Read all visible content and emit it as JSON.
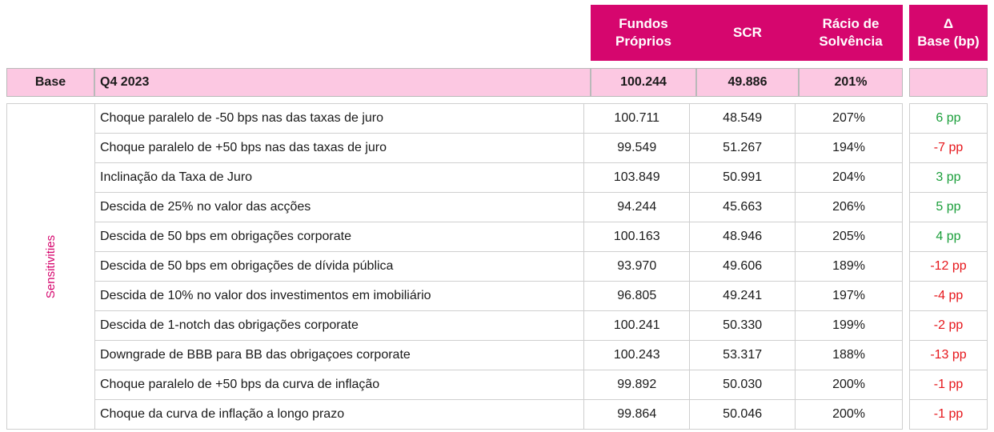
{
  "header": {
    "fundos_line1": "Fundos",
    "fundos_line2": "Próprios",
    "scr": "SCR",
    "racio_line1": "Rácio de",
    "racio_line2": "Solvência",
    "delta_line1": "Δ",
    "delta_line2": "Base (bp)"
  },
  "base": {
    "label": "Base",
    "period": "Q4 2023",
    "fundos": "100.244",
    "scr": "49.886",
    "racio": "201%",
    "delta": ""
  },
  "sensitivities_label": "Sensitivities",
  "rows": [
    {
      "label": "Choque paralelo de -50 bps nas das taxas de juro",
      "fundos": "100.711",
      "scr": "48.549",
      "racio": "207%",
      "delta": "6 pp",
      "sign": "pos"
    },
    {
      "label": "Choque paralelo de +50 bps nas das taxas de juro",
      "fundos": "99.549",
      "scr": "51.267",
      "racio": "194%",
      "delta": "-7 pp",
      "sign": "neg"
    },
    {
      "label": "Inclinação da Taxa de Juro",
      "fundos": "103.849",
      "scr": "50.991",
      "racio": "204%",
      "delta": "3 pp",
      "sign": "pos"
    },
    {
      "label": "Descida de 25% no valor das acções",
      "fundos": "94.244",
      "scr": "45.663",
      "racio": "206%",
      "delta": "5 pp",
      "sign": "pos"
    },
    {
      "label": "Descida de 50 bps em obrigações corporate",
      "fundos": "100.163",
      "scr": "48.946",
      "racio": "205%",
      "delta": "4 pp",
      "sign": "pos"
    },
    {
      "label": "Descida de 50 bps em obrigações de dívida pública",
      "fundos": "93.970",
      "scr": "49.606",
      "racio": "189%",
      "delta": "-12 pp",
      "sign": "neg"
    },
    {
      "label": "Descida de 10% no valor dos investimentos em imobiliário",
      "fundos": "96.805",
      "scr": "49.241",
      "racio": "197%",
      "delta": "-4 pp",
      "sign": "neg"
    },
    {
      "label": "Descida de 1-notch das obrigações corporate",
      "fundos": "100.241",
      "scr": "50.330",
      "racio": "199%",
      "delta": "-2 pp",
      "sign": "neg"
    },
    {
      "label": "Downgrade de BBB para BB das obrigaçoes corporate",
      "fundos": "100.243",
      "scr": "53.317",
      "racio": "188%",
      "delta": "-13 pp",
      "sign": "neg"
    },
    {
      "label": "Choque paralelo de +50 bps da curva de inflação",
      "fundos": "99.892",
      "scr": "50.030",
      "racio": "200%",
      "delta": "-1 pp",
      "sign": "neg"
    },
    {
      "label": "Choque da curva de inflação a longo prazo",
      "fundos": "99.864",
      "scr": "50.046",
      "racio": "200%",
      "delta": "-1 pp",
      "sign": "neg"
    }
  ],
  "colors": {
    "header_bg": "#d6066e",
    "base_bg": "#fcc8e2",
    "positive": "#1a9e3a",
    "negative": "#e6161b"
  }
}
